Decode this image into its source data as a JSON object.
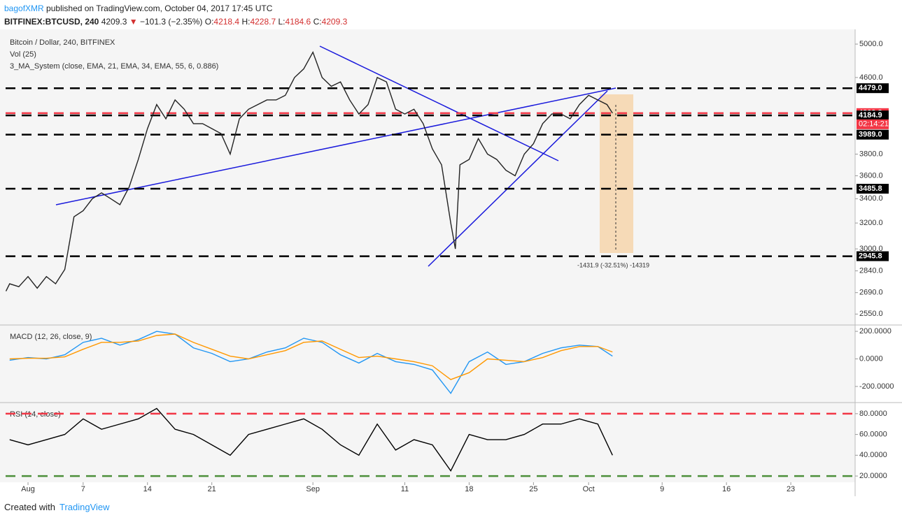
{
  "header": {
    "user": "bagofXMR",
    "published": "published on TradingView.com, October 04, 2017 17:45 UTC",
    "symbol": "BITFINEX:BTCUSD, 240",
    "last": "4209.3",
    "change": "−101.3 (−2.35%)",
    "o_label": "O:",
    "o": "4218.4",
    "h_label": "H:",
    "h": "4228.7",
    "l_label": "L:",
    "l": "4184.6",
    "c_label": "C:",
    "c": "4209.3"
  },
  "chart_data": [
    {
      "type": "line",
      "title": "Bitcoin / Dollar, 240, BITFINEX",
      "indicators": [
        "Vol (25)",
        "3_MA_System (close, EMA, 21, EMA, 34, EMA, 55, 6, 0.886)"
      ],
      "x": [
        -2.4,
        -2,
        -1,
        0,
        1,
        2,
        3,
        4,
        5,
        6,
        7,
        8,
        9,
        10,
        11,
        12,
        13,
        14,
        15,
        16,
        17,
        18,
        19,
        20,
        21,
        22,
        23,
        24,
        25,
        26,
        27,
        28,
        29,
        30,
        31,
        32,
        33,
        34,
        35,
        36,
        37,
        38,
        39,
        40,
        41,
        42,
        43,
        44,
        45,
        46,
        46.5,
        47,
        48,
        49,
        50,
        51,
        52,
        53,
        54,
        55,
        56,
        57,
        58,
        59,
        60,
        61,
        62,
        63,
        63.6
      ],
      "values": [
        2700,
        2750,
        2730,
        2800,
        2720,
        2800,
        2750,
        2850,
        3250,
        3300,
        3400,
        3450,
        3400,
        3350,
        3500,
        3750,
        4050,
        4300,
        4150,
        4350,
        4250,
        4100,
        4100,
        4050,
        4000,
        3800,
        4150,
        4250,
        4300,
        4350,
        4350,
        4400,
        4600,
        4700,
        4900,
        4600,
        4500,
        4550,
        4350,
        4200,
        4300,
        4600,
        4550,
        4250,
        4200,
        4250,
        4100,
        3850,
        3700,
        3200,
        3000,
        3700,
        3750,
        3950,
        3800,
        3750,
        3650,
        3600,
        3800,
        3900,
        4100,
        4200,
        4200,
        4150,
        4300,
        4400,
        4350,
        4300,
        4209.3
      ],
      "color": "#222222",
      "log": true,
      "ylim": [
        2490,
        5160
      ],
      "yticks": [
        {
          "value": 5000,
          "label": "5000.0"
        },
        {
          "value": 4600,
          "label": "4600.0"
        },
        {
          "value": 3800,
          "label": "3800.0"
        },
        {
          "value": 3600,
          "label": "3600.0"
        },
        {
          "value": 3400,
          "label": "3400.0"
        },
        {
          "value": 3200,
          "label": "3200.0"
        },
        {
          "value": 3000,
          "label": "3000.0"
        },
        {
          "value": 2840,
          "label": "2840.0"
        },
        {
          "value": 2690,
          "label": "2690.0"
        },
        {
          "value": 2550,
          "label": "2550.0"
        }
      ],
      "levels": [
        {
          "value": 4479,
          "label": "4479.0",
          "color": "#000000"
        },
        {
          "value": 4209.3,
          "label": "4209.3",
          "color": "#f23645"
        },
        {
          "value": 4184.9,
          "label": "4184.9",
          "color": "#000000"
        },
        {
          "value": 3989,
          "label": "3989.0",
          "color": "#000000"
        },
        {
          "value": 3485.8,
          "label": "3485.8",
          "color": "#000000"
        },
        {
          "value": 2945.8,
          "label": "2945.8",
          "color": "#000000"
        }
      ],
      "countdown": "02:14:21",
      "measure": "-1431.9 (-32.51%) -14319",
      "xlim": [
        -2.44,
        90
      ],
      "xticks": [
        {
          "value": 0,
          "label": "Aug"
        },
        {
          "value": 6,
          "label": "7"
        },
        {
          "value": 13,
          "label": "14"
        },
        {
          "value": 20,
          "label": "21"
        },
        {
          "value": 31,
          "label": "Sep"
        },
        {
          "value": 41,
          "label": "11"
        },
        {
          "value": 48,
          "label": "18"
        },
        {
          "value": 55,
          "label": "25"
        },
        {
          "value": 61,
          "label": "Oct"
        },
        {
          "value": 69,
          "label": "9"
        },
        {
          "value": 76,
          "label": "16"
        },
        {
          "value": 83,
          "label": "23"
        }
      ]
    },
    {
      "type": "line",
      "title": "MACD (12, 26, close, 9)",
      "x": [
        -2,
        0,
        2,
        4,
        6,
        8,
        10,
        12,
        14,
        16,
        18,
        20,
        22,
        24,
        26,
        28,
        30,
        32,
        34,
        36,
        38,
        40,
        42,
        44,
        46,
        48,
        50,
        52,
        54,
        56,
        58,
        60,
        62,
        63.6
      ],
      "series": [
        {
          "color": "#2196f3",
          "values": [
            -10,
            10,
            0,
            30,
            120,
            150,
            100,
            140,
            200,
            180,
            80,
            40,
            -20,
            0,
            50,
            80,
            150,
            120,
            30,
            -30,
            40,
            -20,
            -40,
            -80,
            -250,
            -20,
            50,
            -40,
            -20,
            40,
            80,
            100,
            90,
            20
          ]
        },
        {
          "color": "#ff9800",
          "values": [
            0,
            5,
            5,
            15,
            70,
            120,
            120,
            130,
            170,
            180,
            120,
            70,
            20,
            0,
            30,
            60,
            120,
            130,
            70,
            10,
            20,
            0,
            -20,
            -50,
            -150,
            -100,
            0,
            -10,
            -20,
            10,
            60,
            90,
            90,
            50
          ]
        }
      ],
      "ylim": [
        -312,
        241
      ],
      "yticks": [
        {
          "value": 200,
          "label": "200.0000"
        },
        {
          "value": 0,
          "label": "0.0000"
        },
        {
          "value": -200,
          "label": "-200.0000"
        }
      ]
    },
    {
      "type": "line",
      "title": "RSI (14, close)",
      "x": [
        -2,
        0,
        2,
        4,
        6,
        8,
        10,
        12,
        14,
        16,
        18,
        20,
        22,
        24,
        26,
        28,
        30,
        32,
        34,
        36,
        38,
        40,
        42,
        44,
        46,
        48,
        50,
        52,
        54,
        56,
        58,
        60,
        62,
        63.6
      ],
      "values": [
        55,
        50,
        55,
        60,
        75,
        65,
        70,
        75,
        85,
        65,
        60,
        50,
        40,
        60,
        65,
        70,
        75,
        65,
        50,
        40,
        70,
        45,
        55,
        50,
        25,
        60,
        55,
        55,
        60,
        70,
        70,
        75,
        70,
        40
      ],
      "color": "#000000",
      "ylim": [
        14,
        90
      ],
      "yticks": [
        {
          "value": 80,
          "label": "80.0000"
        },
        {
          "value": 60,
          "label": "60.0000"
        },
        {
          "value": 40,
          "label": "40.0000"
        },
        {
          "value": 20,
          "label": "20.0000"
        }
      ],
      "levels": [
        {
          "value": 80,
          "color": "#f23645"
        },
        {
          "value": 20,
          "color": "#4c8f3a"
        }
      ]
    }
  ],
  "footer": {
    "created": "Created with",
    "brand": "TradingView"
  }
}
